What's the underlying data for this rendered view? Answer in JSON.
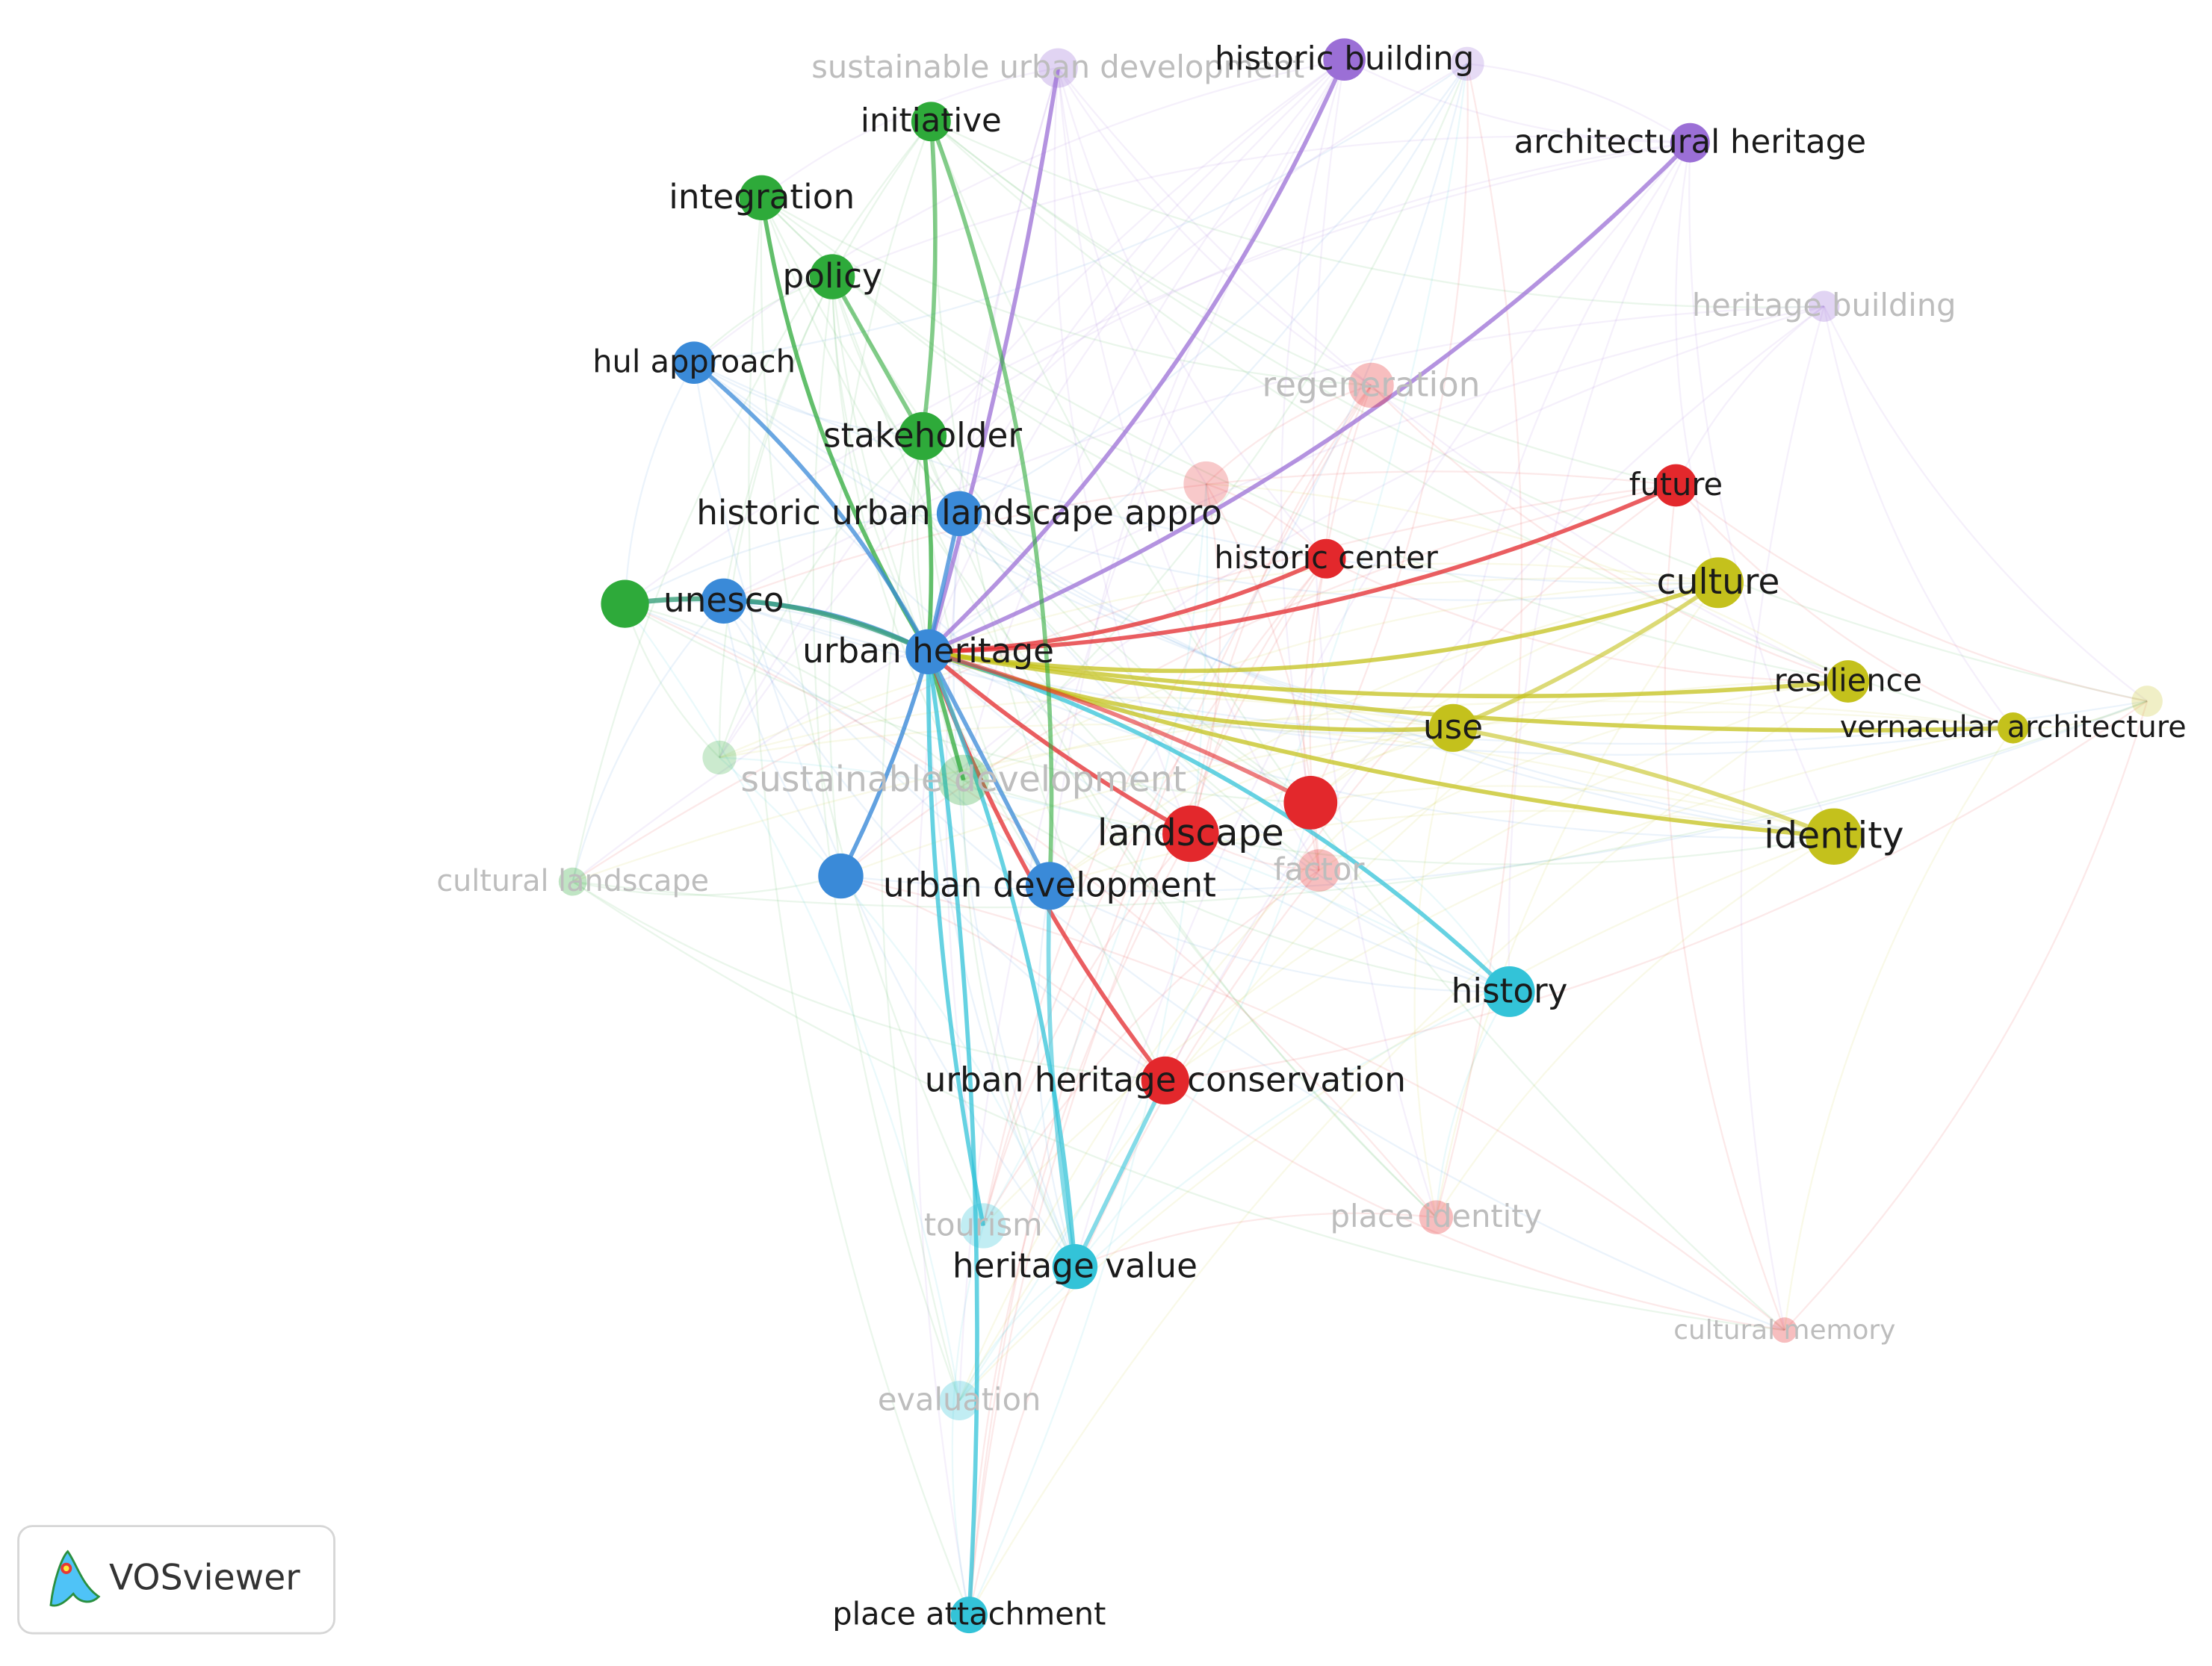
{
  "nodes": [
    {
      "label": "sustainable urban development"
    },
    {
      "label": "historic building"
    },
    {
      "label": "initiative"
    },
    {
      "label": "architectural heritage"
    },
    {
      "label": "integration"
    },
    {
      "label": "policy"
    },
    {
      "label": "heritage building"
    },
    {
      "label": "hul approach"
    },
    {
      "label": "regeneration"
    },
    {
      "label": "stakeholder"
    },
    {
      "label": "future"
    },
    {
      "label": "historic urban landscape appro"
    },
    {
      "label": "historic center"
    },
    {
      "label": "culture"
    },
    {
      "label": "unesco"
    },
    {
      "label": "urban heritage"
    },
    {
      "label": "resilience"
    },
    {
      "label": "use"
    },
    {
      "label": "vernacular architecture"
    },
    {
      "label": "sustainable development"
    },
    {
      "label": "landscape"
    },
    {
      "label": "identity"
    },
    {
      "label": "cultural landscape"
    },
    {
      "label": "urban development"
    },
    {
      "label": "factor"
    },
    {
      "label": "history"
    },
    {
      "label": "urban heritage conservation"
    },
    {
      "label": "place identity"
    },
    {
      "label": "tourism"
    },
    {
      "label": "heritage value"
    },
    {
      "label": "cultural memory"
    },
    {
      "label": "evaluation"
    },
    {
      "label": "place attachment"
    }
  ],
  "logo": {
    "text": "VOSviewer"
  }
}
